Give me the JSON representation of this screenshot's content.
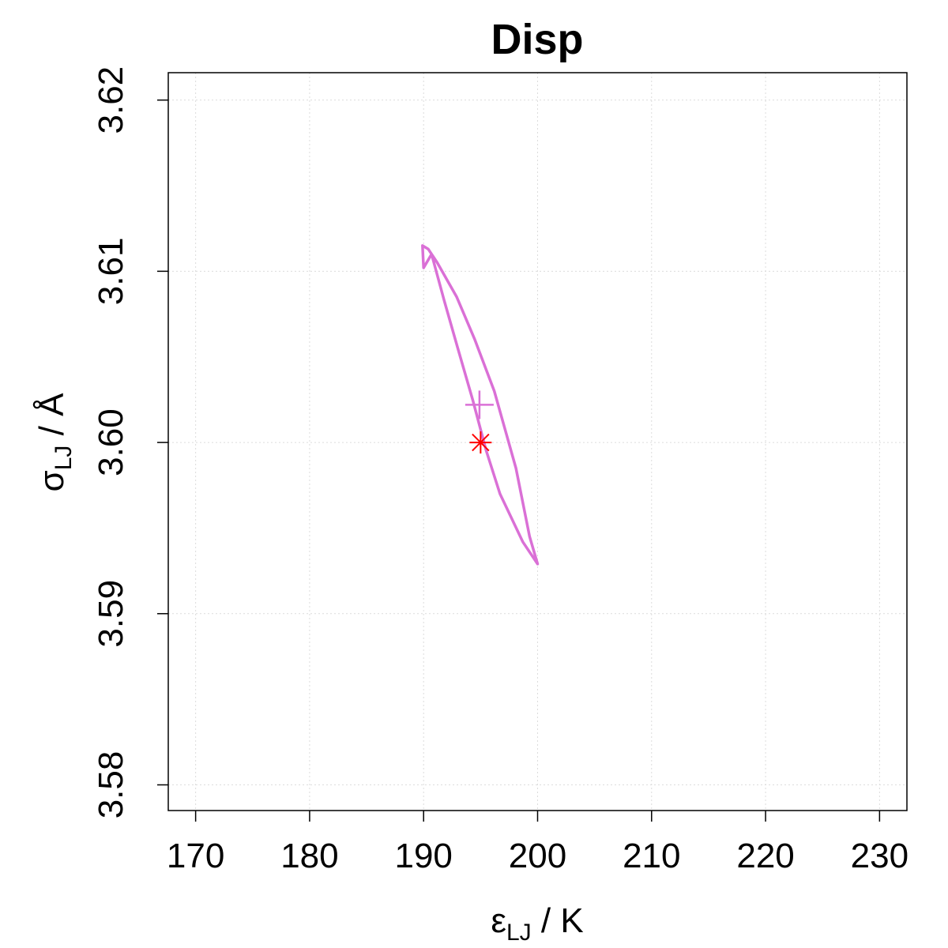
{
  "chart_data": {
    "type": "line",
    "title": "Disp",
    "xlabel": {
      "symbol": "ε",
      "subscript": "LJ",
      "unit": " / K"
    },
    "ylabel": {
      "symbol": "σ",
      "subscript": "LJ",
      "unit": " / Å"
    },
    "xlim": [
      167.6,
      232.4
    ],
    "ylim": [
      3.5785,
      3.6216
    ],
    "x_ticks": [
      170,
      180,
      190,
      200,
      210,
      220,
      230
    ],
    "y_ticks": [
      3.58,
      3.59,
      3.6,
      3.61,
      3.62
    ],
    "x_tick_labels": [
      "170",
      "180",
      "190",
      "200",
      "210",
      "220",
      "230"
    ],
    "y_tick_labels": [
      "3.58",
      "3.59",
      "3.60",
      "3.61",
      "3.62"
    ],
    "grid": true,
    "series": [
      {
        "type": "contour",
        "color": "#DA70D6",
        "x": [
          189.9,
          190.4,
          191.2,
          192.9,
          194.5,
          196.2,
          198.1,
          199.3,
          200.0,
          198.7,
          196.7,
          195.5,
          194.3,
          193.0,
          191.8,
          190.7,
          190.0,
          189.9
        ],
        "y": [
          3.6115,
          3.6113,
          3.6105,
          3.6085,
          3.606,
          3.603,
          3.5985,
          3.5945,
          3.5929,
          3.5942,
          3.597,
          3.5995,
          3.6025,
          3.6055,
          3.6083,
          3.611,
          3.6102,
          3.6115
        ]
      },
      {
        "type": "point",
        "marker": "plus",
        "color": "#DA70D6",
        "x": [
          194.9
        ],
        "y": [
          3.6022
        ]
      },
      {
        "type": "point",
        "marker": "asterisk",
        "color": "#FF0000",
        "x": [
          195.0
        ],
        "y": [
          3.6
        ]
      }
    ]
  }
}
